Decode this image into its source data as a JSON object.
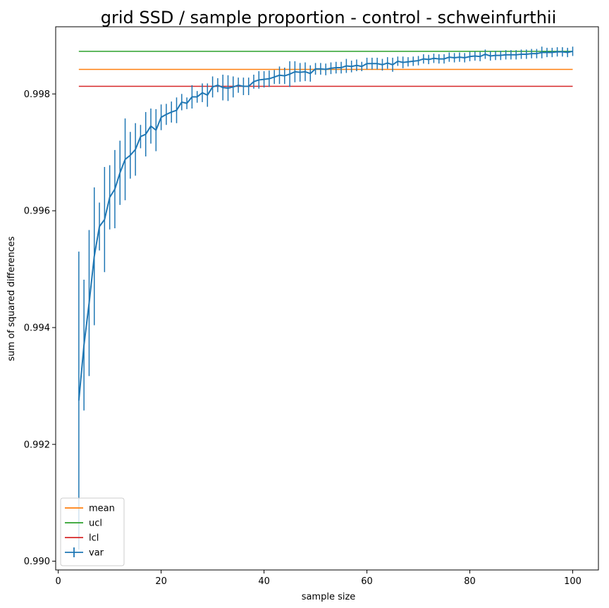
{
  "chart_data": {
    "type": "line",
    "title": "grid SSD / sample proportion - control - schweinfurthii",
    "xlabel": "sample size",
    "ylabel": "sum of squared differences",
    "xlim": [
      -0.5,
      105
    ],
    "ylim": [
      0.98985,
      0.99915
    ],
    "xticks": [
      0,
      20,
      40,
      60,
      80,
      100
    ],
    "xtick_labels": [
      "0",
      "20",
      "40",
      "60",
      "80",
      "100"
    ],
    "yticks": [
      0.99,
      0.992,
      0.994,
      0.996,
      0.998
    ],
    "ytick_labels": [
      "0.990",
      "0.992",
      "0.994",
      "0.996",
      "0.998"
    ],
    "grid": false,
    "legend_placement": "lower-left",
    "series": [
      {
        "name": "mean",
        "kind": "hline",
        "x_range": [
          4,
          100
        ],
        "y": 0.99842,
        "color": "#ff7f0e"
      },
      {
        "name": "ucl",
        "kind": "hline",
        "x_range": [
          4,
          100
        ],
        "y": 0.99873,
        "color": "#2ca02c"
      },
      {
        "name": "lcl",
        "kind": "hline",
        "x_range": [
          4,
          100
        ],
        "y": 0.99813,
        "color": "#d62728"
      },
      {
        "name": "var",
        "kind": "errorbar",
        "color": "#1f77b4",
        "x": [
          4,
          5,
          6,
          7,
          8,
          9,
          10,
          11,
          12,
          13,
          14,
          15,
          16,
          17,
          18,
          19,
          20,
          21,
          22,
          23,
          24,
          25,
          26,
          27,
          28,
          29,
          30,
          31,
          32,
          33,
          34,
          35,
          36,
          37,
          38,
          39,
          40,
          41,
          42,
          43,
          44,
          45,
          46,
          47,
          48,
          49,
          50,
          51,
          52,
          53,
          54,
          55,
          56,
          57,
          58,
          59,
          60,
          61,
          62,
          63,
          64,
          65,
          66,
          67,
          68,
          69,
          70,
          71,
          72,
          73,
          74,
          75,
          76,
          77,
          78,
          79,
          80,
          81,
          82,
          83,
          84,
          85,
          86,
          87,
          88,
          89,
          90,
          91,
          92,
          93,
          94,
          95,
          96,
          97,
          98,
          99,
          100
        ],
        "y": [
          0.99275,
          0.9937,
          0.99442,
          0.99522,
          0.99573,
          0.99585,
          0.99623,
          0.99637,
          0.99665,
          0.99688,
          0.99695,
          0.99705,
          0.99727,
          0.99731,
          0.99745,
          0.99738,
          0.9976,
          0.99765,
          0.99769,
          0.99772,
          0.99786,
          0.99784,
          0.99795,
          0.99795,
          0.99802,
          0.99798,
          0.99812,
          0.99815,
          0.99811,
          0.9981,
          0.99812,
          0.99815,
          0.99813,
          0.99813,
          0.99821,
          0.99824,
          0.99825,
          0.99826,
          0.99829,
          0.99832,
          0.99831,
          0.99834,
          0.99838,
          0.99837,
          0.99838,
          0.99835,
          0.99843,
          0.99843,
          0.99842,
          0.99844,
          0.99845,
          0.99845,
          0.99848,
          0.99847,
          0.99849,
          0.99847,
          0.99852,
          0.99852,
          0.99852,
          0.9985,
          0.99853,
          0.9985,
          0.99856,
          0.99854,
          0.99855,
          0.99856,
          0.99857,
          0.9986,
          0.99859,
          0.99861,
          0.9986,
          0.9986,
          0.99863,
          0.99862,
          0.99863,
          0.99862,
          0.99864,
          0.99865,
          0.99864,
          0.99868,
          0.99865,
          0.99866,
          0.99866,
          0.99867,
          0.99867,
          0.99867,
          0.99868,
          0.99868,
          0.99869,
          0.99869,
          0.99871,
          0.99871,
          0.99871,
          0.99872,
          0.99872,
          0.99871,
          0.99873
        ],
        "err": [
          0.00255,
          0.00112,
          0.00125,
          0.00118,
          0.00041,
          0.0009,
          0.00055,
          0.00067,
          0.00055,
          0.0007,
          0.0004,
          0.00045,
          0.0002,
          0.00038,
          0.0003,
          0.00036,
          0.00022,
          0.00018,
          0.00018,
          0.00022,
          0.00014,
          0.0001,
          0.0002,
          0.0001,
          0.00016,
          0.0002,
          0.00018,
          0.00012,
          0.00022,
          0.00022,
          0.00018,
          0.00013,
          0.00015,
          0.00015,
          0.00012,
          0.00015,
          0.00014,
          0.00014,
          0.00012,
          0.00015,
          0.00014,
          0.00022,
          0.00018,
          0.00016,
          0.00016,
          0.00014,
          0.0001,
          0.0001,
          0.0001,
          0.0001,
          0.0001,
          0.0001,
          0.00012,
          0.0001,
          0.0001,
          8e-05,
          0.0001,
          0.0001,
          0.0001,
          0.0001,
          0.0001,
          0.00012,
          8e-05,
          0.0001,
          8e-05,
          8e-05,
          8e-05,
          8e-05,
          8e-05,
          8e-05,
          8e-05,
          8e-05,
          8e-05,
          8e-05,
          8e-05,
          8e-05,
          8e-05,
          8e-05,
          8e-05,
          8e-05,
          8e-05,
          8e-05,
          8e-05,
          8e-05,
          8e-05,
          8e-05,
          8e-05,
          8e-05,
          8e-05,
          8e-05,
          0.0001,
          8e-05,
          8e-05,
          8e-05,
          8e-05,
          8e-05,
          8e-05
        ]
      }
    ]
  }
}
